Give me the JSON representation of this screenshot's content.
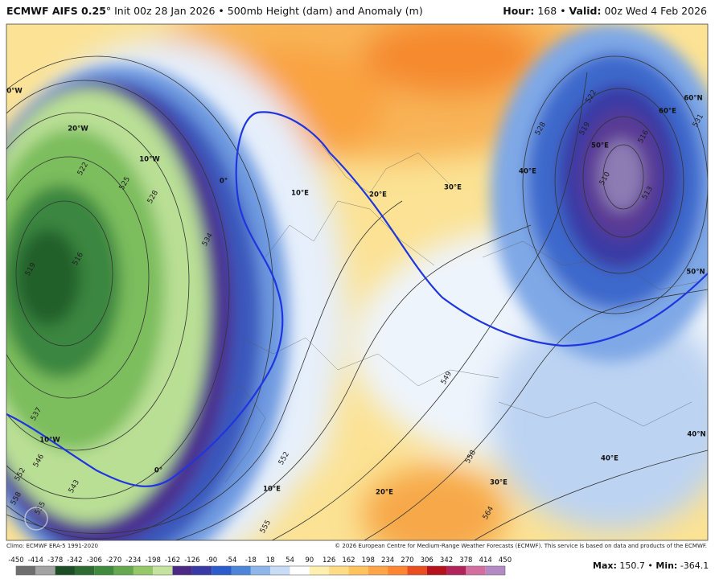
{
  "header": {
    "model": "ECMWF AIFS 0.25",
    "init": "° Init 00z 28 Jan 2026 • 500mb Height (dam) and Anomaly (m)",
    "hour_label": "Hour:",
    "hour": "168",
    "separator": "•",
    "valid_label": "Valid:",
    "valid": "00z Wed 4 Feb 2026"
  },
  "map": {
    "contour_labels": [
      "522",
      "525",
      "528",
      "534",
      "519",
      "516",
      "537",
      "546",
      "552",
      "558",
      "555",
      "543",
      "552",
      "555",
      "564",
      "558",
      "549",
      "528",
      "522",
      "519",
      "516",
      "510",
      "513",
      "531"
    ],
    "grid_labels": [
      "0°W",
      "20°W",
      "10°W",
      "0°",
      "10°E",
      "20°E",
      "30°E",
      "40°E",
      "50°E",
      "60°E",
      "60°N",
      "50°N",
      "40°N",
      "10°W",
      "0°",
      "10°E",
      "20°E",
      "30°E",
      "40°E"
    ]
  },
  "footer": {
    "climo": "Climo: ECMWF ERA-5 1991-2020",
    "copyright": "© 2026 European Centre for Medium-Range Weather Forecasts (ECMWF). This service is based on data and products of the ECMWF."
  },
  "colorbar": {
    "ticks": [
      -450,
      -414,
      -378,
      -342,
      -306,
      -270,
      -234,
      -198,
      -162,
      -126,
      -90,
      -54,
      -18,
      18,
      54,
      90,
      126,
      162,
      198,
      234,
      270,
      306,
      342,
      378,
      414,
      450
    ],
    "colors": [
      "#6e6e6e",
      "#a3a3a3",
      "#1d4d25",
      "#2e6b33",
      "#3f8a3f",
      "#66a84d",
      "#96c86a",
      "#c5e29e",
      "#4b2a86",
      "#3a3aa6",
      "#2c5ccc",
      "#4d86d8",
      "#8fb6ea",
      "#c9dcf5",
      "#ffffff",
      "#fff0b0",
      "#ffdc85",
      "#ffc35e",
      "#ffa447",
      "#ff8530",
      "#ea4e20",
      "#b5121b",
      "#b0245a",
      "#d36e9e",
      "#b38ac4"
    ]
  },
  "stats": {
    "max_label": "Max:",
    "max": 150.7,
    "separator": "•",
    "min_label": "Min:",
    "min": -364.1
  }
}
